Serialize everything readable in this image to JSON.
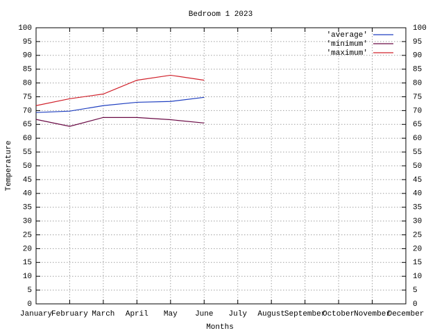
{
  "chart_data": {
    "type": "line",
    "title": "Bedroom 1 2023",
    "xlabel": "Months",
    "ylabel": "Temperature",
    "categories": [
      "January",
      "February",
      "March",
      "April",
      "May",
      "June",
      "July",
      "August",
      "September",
      "October",
      "November",
      "December"
    ],
    "series": [
      {
        "name": "'average'",
        "color": "#1f3fc0",
        "values": [
          69.3,
          69.8,
          71.8,
          73,
          73.3,
          74.8,
          null,
          null,
          null,
          null,
          null,
          null
        ]
      },
      {
        "name": "'minimum'",
        "color": "#6a0a45",
        "values": [
          66.8,
          64.3,
          67.5,
          67.5,
          66.7,
          65.5,
          null,
          null,
          null,
          null,
          null,
          null
        ]
      },
      {
        "name": "'maximum'",
        "color": "#d0202a",
        "values": [
          71.8,
          74.3,
          76,
          81,
          82.8,
          81,
          null,
          null,
          null,
          null,
          null,
          null
        ]
      }
    ],
    "ylim": [
      0,
      100
    ],
    "yticks": [
      0,
      5,
      10,
      15,
      20,
      25,
      30,
      35,
      40,
      45,
      50,
      55,
      60,
      65,
      70,
      75,
      80,
      85,
      90,
      95,
      100
    ],
    "y2lim": [
      0,
      100
    ],
    "y2ticks": [
      0,
      5,
      10,
      15,
      20,
      25,
      30,
      35,
      40,
      45,
      50,
      55,
      60,
      65,
      70,
      75,
      80,
      85,
      90,
      95,
      100
    ],
    "grid": true,
    "legend": "top-right"
  }
}
